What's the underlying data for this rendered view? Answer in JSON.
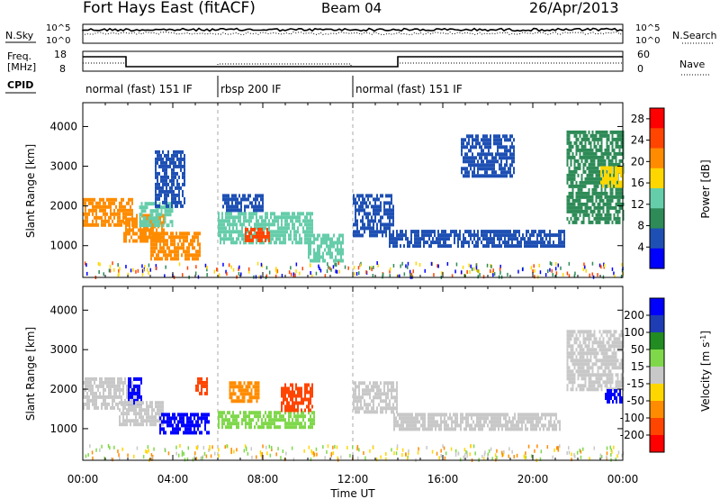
{
  "header": {
    "title": "Fort Hays East (fitACF)",
    "beam": "Beam 04",
    "date": "26/Apr/2013"
  },
  "aux_panels": {
    "nsky_label": "N.Sky",
    "nsearch_label": "N.Search",
    "freq_label_line1": "Freq.",
    "freq_label_line2": "[MHz]",
    "nave_label": "Nave",
    "cpid_label": "CPID",
    "noise_ticks_left": [
      "10^5",
      "10^0"
    ],
    "noise_ticks_right": [
      "10^5",
      "10^0"
    ],
    "freq_ticks": [
      "18",
      "8"
    ],
    "nave_ticks": [
      "60",
      "0"
    ],
    "cpid_segments": [
      {
        "label": "normal (fast) 151 IF",
        "start_hour": 0,
        "end_hour": 6
      },
      {
        "label": "rbsp 200 IF",
        "start_hour": 6,
        "end_hour": 12
      },
      {
        "label": "normal (fast) 151 IF",
        "start_hour": 12,
        "end_hour": 24
      }
    ]
  },
  "chart_data": [
    {
      "type": "heatmap",
      "title": "Power",
      "xlabel": "Time UT",
      "ylabel": "Slant Range [km]",
      "xlim": [
        0,
        24
      ],
      "ylim": [
        200,
        4600
      ],
      "x_ticks": [
        "00:00",
        "04:00",
        "08:00",
        "12:00",
        "16:00",
        "20:00",
        "00:00"
      ],
      "y_ticks": [
        1000,
        2000,
        3000,
        4000
      ],
      "colorbar": {
        "label": "Power [dB]",
        "ticks": [
          4,
          8,
          12,
          16,
          20,
          24,
          28
        ],
        "range": [
          0,
          30
        ],
        "colors": [
          "#0000ff",
          "#1e50b4",
          "#2e8b57",
          "#66cdaa",
          "#ffd700",
          "#ff8c00",
          "#ff4500",
          "#ff0000"
        ]
      },
      "regions": [
        {
          "t0": 0.0,
          "t1": 2.2,
          "r0": 1550,
          "r1": 2200,
          "value": 20
        },
        {
          "t0": 1.8,
          "t1": 3.6,
          "r0": 1100,
          "r1": 1800,
          "value": 22
        },
        {
          "t0": 2.5,
          "t1": 4.0,
          "r0": 1500,
          "r1": 2100,
          "value": 14
        },
        {
          "t0": 3.0,
          "t1": 5.2,
          "r0": 700,
          "r1": 1350,
          "value": 20
        },
        {
          "t0": 3.2,
          "t1": 4.5,
          "r0": 2000,
          "r1": 3400,
          "value": 4
        },
        {
          "t0": 6.0,
          "t1": 10.2,
          "r0": 1050,
          "r1": 1850,
          "value": 12
        },
        {
          "t0": 7.2,
          "t1": 8.3,
          "r0": 1100,
          "r1": 1450,
          "value": 24
        },
        {
          "t0": 6.2,
          "t1": 8.0,
          "r0": 1900,
          "r1": 2300,
          "value": 6
        },
        {
          "t0": 10.0,
          "t1": 11.6,
          "r0": 600,
          "r1": 1300,
          "value": 12
        },
        {
          "t0": 12.0,
          "t1": 13.8,
          "r0": 1300,
          "r1": 2300,
          "value": 4
        },
        {
          "t0": 13.6,
          "t1": 21.4,
          "r0": 950,
          "r1": 1400,
          "value": 4
        },
        {
          "t0": 16.8,
          "t1": 19.2,
          "r0": 2800,
          "r1": 3800,
          "value": 4
        },
        {
          "t0": 21.5,
          "t1": 24.0,
          "r0": 1600,
          "r1": 3900,
          "value": 8
        },
        {
          "t0": 23.0,
          "t1": 24.0,
          "r0": 2500,
          "r1": 3000,
          "value": 16
        }
      ]
    },
    {
      "type": "heatmap",
      "title": "Velocity",
      "xlabel": "Time UT",
      "ylabel": "Slant Range [km]",
      "xlim": [
        0,
        24
      ],
      "ylim": [
        200,
        4600
      ],
      "x_ticks": [
        "00:00",
        "04:00",
        "08:00",
        "12:00",
        "16:00",
        "20:00",
        "00:00"
      ],
      "y_ticks": [
        1000,
        2000,
        3000,
        4000
      ],
      "colorbar": {
        "label": "Velocity [m s-1]",
        "ticks": [
          200,
          100,
          50,
          15,
          -15,
          -50,
          -100,
          -200
        ],
        "colors": [
          "#0000ff",
          "#1e3cb4",
          "#228b22",
          "#7fd84a",
          "#c8c8c8",
          "#ffd700",
          "#ff8c00",
          "#ff4500",
          "#ff0000"
        ]
      },
      "regions": [
        {
          "t0": 0.0,
          "t1": 2.4,
          "r0": 1500,
          "r1": 2300,
          "value": 0
        },
        {
          "t0": 2.0,
          "t1": 2.6,
          "r0": 1650,
          "r1": 2300,
          "value": 180
        },
        {
          "t0": 1.6,
          "t1": 3.6,
          "r0": 1100,
          "r1": 1700,
          "value": -5
        },
        {
          "t0": 3.4,
          "t1": 5.6,
          "r0": 900,
          "r1": 1400,
          "value": 220
        },
        {
          "t0": 5.0,
          "t1": 5.5,
          "r0": 1900,
          "r1": 2300,
          "value": -120
        },
        {
          "t0": 6.0,
          "t1": 10.3,
          "r0": 1000,
          "r1": 1450,
          "value": 30
        },
        {
          "t0": 8.8,
          "t1": 10.2,
          "r0": 1450,
          "r1": 2150,
          "value": -120
        },
        {
          "t0": 6.5,
          "t1": 7.8,
          "r0": 1700,
          "r1": 2200,
          "value": -60
        },
        {
          "t0": 12.0,
          "t1": 14.0,
          "r0": 1400,
          "r1": 2200,
          "value": 5
        },
        {
          "t0": 13.8,
          "t1": 21.2,
          "r0": 1000,
          "r1": 1400,
          "value": 5
        },
        {
          "t0": 21.5,
          "t1": 24.0,
          "r0": 2000,
          "r1": 3500,
          "value": 5
        },
        {
          "t0": 23.2,
          "t1": 24.0,
          "r0": 1700,
          "r1": 2000,
          "value": 200
        }
      ]
    }
  ]
}
